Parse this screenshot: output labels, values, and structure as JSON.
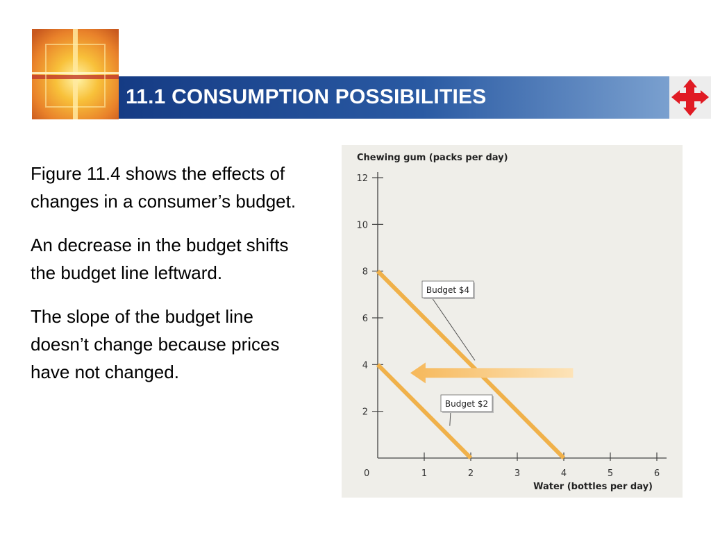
{
  "slide": {
    "title": "11.1 CONSUMPTION POSSIBILITIES",
    "paragraphs": [
      "Figure 11.4 shows the effects of changes in a consumer’s budget.",
      "An decrease in the budget shifts the budget line leftward.",
      "The slope of the budget line doesn’t change because prices have not changed."
    ]
  },
  "icons": {
    "logo": "cross-window-logo",
    "nav": "four-way-arrow-icon"
  },
  "colors": {
    "title_bar": "#1f4a93",
    "budget_line": "#f0b14a",
    "arrow": "#f7c678"
  },
  "chart_data": {
    "type": "line",
    "ylabel": "Chewing gum (packs per day)",
    "xlabel": "Water (bottles per day)",
    "xlim": [
      0,
      6
    ],
    "ylim": [
      0,
      12
    ],
    "x_ticks": [
      1,
      2,
      3,
      4,
      5,
      6
    ],
    "y_ticks": [
      2,
      4,
      6,
      8,
      10,
      12
    ],
    "origin_label": "0",
    "grid": false,
    "series": [
      {
        "name": "Budget $4",
        "x": [
          0,
          4
        ],
        "y": [
          8,
          0
        ]
      },
      {
        "name": "Budget $2",
        "x": [
          0,
          2
        ],
        "y": [
          4,
          0
        ]
      }
    ],
    "annotations": [
      {
        "text": "Budget $4",
        "points_to": [
          2,
          4
        ]
      },
      {
        "text": "Budget $2",
        "points_to": [
          1.4,
          1.2
        ]
      }
    ],
    "arrow": {
      "direction": "leftward",
      "from": [
        4.2,
        4
      ],
      "to": [
        0.7,
        4
      ]
    }
  }
}
